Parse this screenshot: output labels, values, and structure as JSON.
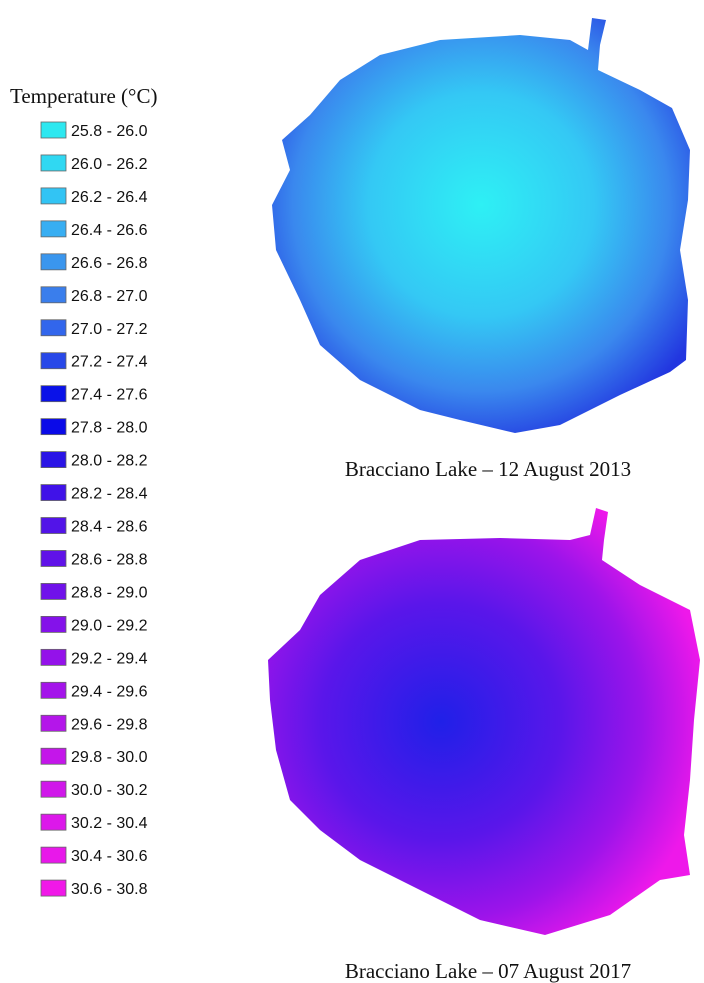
{
  "legend": {
    "title": "Temperature (°C)",
    "items": [
      {
        "label": "25.8 - 26.0",
        "color": "#2ee8f0"
      },
      {
        "label": "26.0 - 26.2",
        "color": "#30d8f2"
      },
      {
        "label": "26.2 - 26.4",
        "color": "#32c4f4"
      },
      {
        "label": "26.4 - 26.6",
        "color": "#38aef2"
      },
      {
        "label": "26.6 - 26.8",
        "color": "#3a96ee"
      },
      {
        "label": "26.8 - 27.0",
        "color": "#3a7eec"
      },
      {
        "label": "27.0 - 27.2",
        "color": "#3266ec"
      },
      {
        "label": "27.2 - 27.4",
        "color": "#2848e8"
      },
      {
        "label": "27.4 - 27.6",
        "color": "#0a12e8"
      },
      {
        "label": "27.8 - 28.0",
        "color": "#0a0ae8"
      },
      {
        "label": "28.0 - 28.2",
        "color": "#2a14e6"
      },
      {
        "label": "28.2 - 28.4",
        "color": "#4012e8"
      },
      {
        "label": "28.4 - 28.6",
        "color": "#5214e8"
      },
      {
        "label": "28.6 - 28.8",
        "color": "#6012e8"
      },
      {
        "label": "28.8 - 29.0",
        "color": "#7012ea"
      },
      {
        "label": "29.0 - 29.2",
        "color": "#8412ea"
      },
      {
        "label": "29.2 - 29.4",
        "color": "#9412ea"
      },
      {
        "label": "29.4 - 29.6",
        "color": "#a414ea"
      },
      {
        "label": "29.6 - 29.8",
        "color": "#b416ea"
      },
      {
        "label": "29.8 - 30.0",
        "color": "#c416ea"
      },
      {
        "label": "30.0 - 30.2",
        "color": "#d018ea"
      },
      {
        "label": "30.2 - 30.4",
        "color": "#dc18ea"
      },
      {
        "label": "30.4 - 30.6",
        "color": "#e818ea"
      },
      {
        "label": "30.6 - 30.8",
        "color": "#f018e8"
      }
    ]
  },
  "maps": [
    {
      "caption": "Bracciano Lake – 12 August 2013"
    },
    {
      "caption": "Bracciano Lake – 07 August 2017"
    }
  ]
}
